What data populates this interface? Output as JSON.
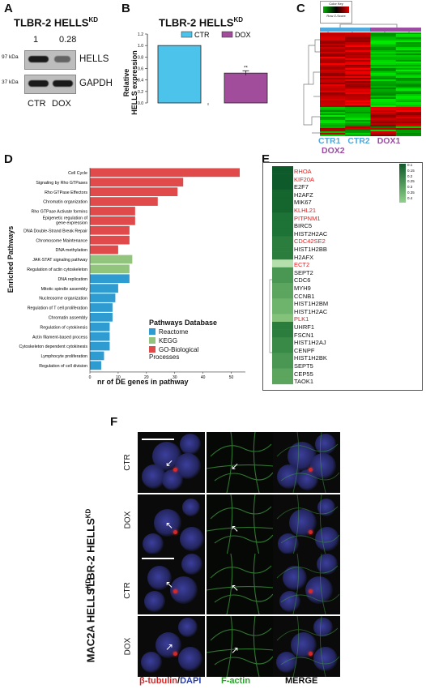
{
  "panels": {
    "A": "A",
    "B": "B",
    "C": "C",
    "D": "D",
    "E": "E",
    "F": "F"
  },
  "panelA": {
    "title": "TLBR-2 HELLS",
    "title_sup": "KD",
    "ratio_ctr": "1",
    "ratio_dox": "0.28",
    "marker_97": "97 kDa",
    "marker_37": "37 kDa",
    "label_hells": "HELLS",
    "label_gapdh": "GAPDH",
    "lane_ctr": "CTR",
    "lane_dox": "DOX"
  },
  "panelB": {
    "title": "TLBR-2 HELLS",
    "title_sup": "KD",
    "legend_ctr": "CTR",
    "legend_dox": "DOX",
    "ylabel_line1": "Relative",
    "ylabel_line2": "HELLS expression",
    "significance": "**",
    "color_ctr": "#4cc3ea",
    "color_dox": "#a24c9c"
  },
  "panelC": {
    "color_key_label": "Color Key",
    "color_key_axis": "Row Z-Score",
    "col_labels": [
      "CTR1",
      "CTR2",
      "DOX1",
      "DOX2"
    ],
    "color_ctr": "#4fa9dd",
    "color_dox": "#9a4da1"
  },
  "panelD": {
    "ylabel": "Enriched Pathways",
    "xlabel": "nr of DE genes in pathway",
    "legend_title": "Pathways Database",
    "legend_items": [
      "Reactome",
      "KEGG",
      "GO-Biological Processes"
    ],
    "colors": {
      "go": "#e04a4a",
      "kegg": "#93c47d",
      "reactome": "#2e9bd1"
    }
  },
  "panelE": {
    "genes": [
      {
        "name": "RHOA",
        "red": true
      },
      {
        "name": "KIF20A",
        "red": true
      },
      {
        "name": "E2F7",
        "red": false
      },
      {
        "name": "H2AFZ",
        "red": false
      },
      {
        "name": "MIK67",
        "red": false
      },
      {
        "name": "KLHL21",
        "red": true
      },
      {
        "name": "PITPNM1",
        "red": true
      },
      {
        "name": "BIRC5",
        "red": false
      },
      {
        "name": "HIST2H2AC",
        "red": false
      },
      {
        "name": "CDC42SE2",
        "red": true
      },
      {
        "name": "HIST1H2BB",
        "red": false
      },
      {
        "name": "H2AFX",
        "red": false
      },
      {
        "name": "ECT2",
        "red": true
      },
      {
        "name": "SEPT2",
        "red": false
      },
      {
        "name": "CDC6",
        "red": false
      },
      {
        "name": "MYH9",
        "red": false
      },
      {
        "name": "CCNB1",
        "red": false
      },
      {
        "name": "HIST1H2BM",
        "red": false
      },
      {
        "name": "HIST1H2AC",
        "red": false
      },
      {
        "name": "PLK1",
        "red": true
      },
      {
        "name": "UHRF1",
        "red": false
      },
      {
        "name": "FSCN1",
        "red": false
      },
      {
        "name": "HIST1H2AJ",
        "red": false
      },
      {
        "name": "CENPF",
        "red": false
      },
      {
        "name": "HIST1H2BK",
        "red": false
      },
      {
        "name": "SEPT5",
        "red": false
      },
      {
        "name": "CEP55",
        "red": false
      },
      {
        "name": "TAOK1",
        "red": false
      }
    ],
    "scale_ticks": [
      "0.1",
      "0.15",
      "0.2",
      "0.25",
      "0.3",
      "0.35",
      "0.4"
    ]
  },
  "panelF": {
    "group1_label": "TLBR-2 HELLS",
    "group1_sup": "KD",
    "group2_label": "MAC2A HELLS",
    "group2_sup": "KD",
    "row_ctr": "CTR",
    "row_dox": "DOX",
    "channel_tubulin": "β-tubulin",
    "channel_sep": "/",
    "channel_dapi": "DAPI",
    "channel_actin": "F-actin",
    "channel_merge": "MERGE",
    "color_tubulin": "#d62728",
    "color_dapi": "#2b3fa8",
    "color_actin": "#2ca02c"
  },
  "chart_data": [
    {
      "type": "bar",
      "title": "TLBR-2 HELLS KD",
      "categories": [
        "CTR",
        "DOX"
      ],
      "values": [
        1.0,
        0.52
      ],
      "errors": [
        0.0,
        0.04
      ],
      "ylabel": "Relative HELLS expression",
      "yticks": [
        "0.0",
        "0.2",
        "0.4",
        "0.6",
        "0.8",
        "1.0",
        "1.2"
      ],
      "ylim": [
        0,
        1.2
      ]
    },
    {
      "type": "bar",
      "orientation": "horizontal",
      "xlabel": "nr of DE genes in pathway",
      "ylabel": "Enriched Pathways",
      "xlim": [
        0,
        55
      ],
      "xticks": [
        "0",
        "10",
        "20",
        "30",
        "40",
        "50"
      ],
      "categories": [
        "Cell Cycle",
        "Signaling by Rho GTPases",
        "Rho GTPase Effectors",
        "Chromatin organization",
        "Rho GTPase Activate formins",
        "Epigenetic regulation of gene expression",
        "DNA Double-Strand Break Repair",
        "Chromosome Maintenance",
        "DNA methylation",
        "JAK-STAT signaling pathway",
        "Regulation of actin cytoskeleton",
        "DNA replication",
        "Mitotic spindle assembly",
        "Nucleosome organization",
        "Regulation of T cell proliferation",
        "Chromatin assembly",
        "Regulation of cytokinesis",
        "Actin filament-based process",
        "Cytoskeleton dependent cytokinesis",
        "Lymphocyte proliferation",
        "Regulation of cell division"
      ],
      "values": [
        53,
        33,
        31,
        24,
        16,
        16,
        14,
        14,
        10,
        15,
        14,
        14,
        10,
        9,
        8,
        8,
        7,
        7,
        7,
        5,
        4
      ],
      "database": [
        "go",
        "go",
        "go",
        "go",
        "go",
        "go",
        "go",
        "go",
        "go",
        "kegg",
        "kegg",
        "reactome",
        "reactome",
        "reactome",
        "reactome",
        "reactome",
        "reactome",
        "reactome",
        "reactome",
        "reactome",
        "reactome"
      ]
    }
  ]
}
